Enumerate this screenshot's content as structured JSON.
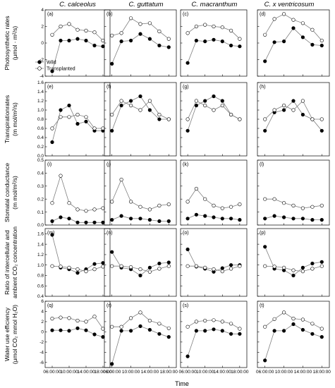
{
  "figure": {
    "columns": [
      "C. calceolus",
      "C. guttatum",
      "C. macranthum",
      "C. x ventricosum"
    ],
    "x_axis_label": "Time",
    "x_tick_labels": [
      "06:00:00",
      "10:00:00",
      "14:00:00",
      "18:00:00"
    ],
    "legend": {
      "wild": "Wild",
      "transplanted": "Transplanted"
    },
    "colors": {
      "wild": "#000000",
      "transplanted": "#ffffff",
      "line": "#808080"
    }
  },
  "chart_data": [
    {
      "type": "line",
      "row_label": [
        "Photosynthetic rates",
        "(μmol · m²/s)"
      ],
      "ylim": [
        -4,
        4
      ],
      "yticks": [
        "4",
        "2",
        "0",
        "-2",
        "-4"
      ],
      "x": [
        "06:00",
        "08:00",
        "10:00",
        "12:00",
        "14:00",
        "16:00",
        "18:00"
      ],
      "panels": [
        {
          "tag": "(a)",
          "series": [
            {
              "name": "Wild",
              "values": [
                -3.4,
                0.3,
                0.3,
                0.5,
                0.3,
                -0.3,
                -0.4
              ]
            },
            {
              "name": "Transplanted",
              "values": [
                1.0,
                2.0,
                2.3,
                1.6,
                1.5,
                1.3,
                0.3
              ]
            }
          ]
        },
        {
          "tag": "(b)",
          "series": [
            {
              "name": "Wild",
              "values": [
                -2.5,
                0.2,
                0.3,
                1.1,
                0.5,
                -0.3,
                -0.5
              ]
            },
            {
              "name": "Transplanted",
              "values": [
                0.9,
                1.2,
                3.0,
                2.3,
                2.4,
                1.4,
                0.5
              ]
            }
          ]
        },
        {
          "tag": "(c)",
          "series": [
            {
              "name": "Wild",
              "values": [
                -2.4,
                0.3,
                0.2,
                0.4,
                0.2,
                -0.3,
                -0.4
              ]
            },
            {
              "name": "Transplanted",
              "values": [
                1.2,
                2.0,
                2.2,
                2.0,
                1.9,
                1.5,
                0.5
              ]
            }
          ]
        },
        {
          "tag": "(d)",
          "series": [
            {
              "name": "Wild",
              "values": [
                -2.2,
                0.1,
                0.2,
                1.8,
                0.7,
                -0.2,
                -0.3
              ]
            },
            {
              "name": "Transplanted",
              "values": [
                1.0,
                2.9,
                3.5,
                2.8,
                2.4,
                1.6,
                0.3
              ]
            }
          ]
        }
      ]
    },
    {
      "type": "line",
      "row_label": [
        "Transpirationrates",
        "(m mol/m²/s)"
      ],
      "ylim": [
        0,
        1.6
      ],
      "yticks": [
        "1.6",
        "1.4",
        "1.2",
        "1.0",
        "0.8",
        "0.6",
        "0.4",
        "0.2",
        "0.0"
      ],
      "x": [
        "06:00",
        "08:00",
        "10:00",
        "12:00",
        "14:00",
        "16:00",
        "18:00"
      ],
      "panels": [
        {
          "tag": "(e)",
          "series": [
            {
              "name": "Wild",
              "values": [
                0.3,
                1.0,
                1.1,
                0.7,
                0.75,
                0.55,
                0.55
              ]
            },
            {
              "name": "Transplanted",
              "values": [
                0.6,
                0.85,
                0.85,
                0.9,
                0.85,
                0.6,
                0.6
              ]
            }
          ]
        },
        {
          "tag": "(f)",
          "series": [
            {
              "name": "Wild",
              "values": [
                0.55,
                1.1,
                1.2,
                1.3,
                1.0,
                0.8,
                0.8
              ]
            },
            {
              "name": "Transplanted",
              "values": [
                0.9,
                1.2,
                1.1,
                1.0,
                1.2,
                0.9,
                0.8
              ]
            }
          ]
        },
        {
          "tag": "(g)",
          "series": [
            {
              "name": "Wild",
              "values": [
                0.55,
                1.1,
                1.2,
                1.3,
                1.2,
                0.9,
                0.8
              ]
            },
            {
              "name": "Transplanted",
              "values": [
                0.8,
                1.2,
                1.1,
                1.0,
                1.1,
                0.9,
                0.8
              ]
            }
          ]
        },
        {
          "tag": "(h)",
          "series": [
            {
              "name": "Wild",
              "values": [
                0.55,
                0.95,
                1.0,
                1.2,
                0.9,
                0.8,
                0.55
              ]
            },
            {
              "name": "Transplanted",
              "values": [
                0.8,
                1.0,
                1.1,
                1.0,
                1.2,
                0.8,
                0.8
              ]
            }
          ]
        }
      ]
    },
    {
      "type": "line",
      "row_label": [
        "Stomatal conductance",
        "(m mol/m²/s)"
      ],
      "ylim": [
        0,
        0.5
      ],
      "yticks": [
        "0.5",
        "0.4",
        "0.3",
        "0.2",
        "0.1",
        "0.0"
      ],
      "x": [
        "06:00",
        "08:00",
        "10:00",
        "12:00",
        "14:00",
        "16:00",
        "18:00"
      ],
      "panels": [
        {
          "tag": "(i)",
          "series": [
            {
              "name": "Wild",
              "values": [
                0.03,
                0.06,
                0.05,
                0.02,
                0.02,
                0.02,
                0.02
              ]
            },
            {
              "name": "Transplanted",
              "values": [
                0.17,
                0.38,
                0.17,
                0.12,
                0.11,
                0.12,
                0.13
              ]
            }
          ]
        },
        {
          "tag": "(j)",
          "series": [
            {
              "name": "Wild",
              "values": [
                0.04,
                0.07,
                0.05,
                0.05,
                0.04,
                0.03,
                0.03
              ]
            },
            {
              "name": "Transplanted",
              "values": [
                0.18,
                0.35,
                0.18,
                0.14,
                0.12,
                0.15,
                0.16
              ]
            }
          ]
        },
        {
          "tag": "(k)",
          "series": [
            {
              "name": "Wild",
              "values": [
                0.05,
                0.08,
                0.07,
                0.06,
                0.05,
                0.05,
                0.04
              ]
            },
            {
              "name": "Transplanted",
              "values": [
                0.18,
                0.28,
                0.2,
                0.15,
                0.13,
                0.14,
                0.16
              ]
            }
          ]
        },
        {
          "tag": "(l)",
          "series": [
            {
              "name": "Wild",
              "values": [
                0.05,
                0.07,
                0.06,
                0.05,
                0.05,
                0.04,
                0.04
              ]
            },
            {
              "name": "Transplanted",
              "values": [
                0.2,
                0.2,
                0.17,
                0.15,
                0.13,
                0.14,
                0.15
              ]
            }
          ]
        }
      ]
    },
    {
      "type": "line",
      "row_label": [
        "Ratio of intercellular and",
        "ambient CO₂ concentration"
      ],
      "ylim": [
        0.4,
        1.7
      ],
      "yticks": [
        "1.6",
        "1.4",
        "1.2",
        "1.0",
        "0.8",
        "0.6",
        "0.4"
      ],
      "x": [
        "06:00",
        "08:00",
        "10:00",
        "12:00",
        "14:00",
        "16:00",
        "18:00"
      ],
      "panels": [
        {
          "tag": "(m)",
          "series": [
            {
              "name": "Wild",
              "values": [
                1.58,
                0.95,
                0.92,
                0.85,
                0.92,
                1.02,
                1.04
              ]
            },
            {
              "name": "Transplanted",
              "values": [
                0.98,
                0.97,
                0.95,
                0.92,
                0.88,
                0.92,
                0.97
              ]
            }
          ]
        },
        {
          "tag": "(n)",
          "series": [
            {
              "name": "Wild",
              "values": [
                1.25,
                0.95,
                0.92,
                0.8,
                0.95,
                1.03,
                1.05
              ]
            },
            {
              "name": "Transplanted",
              "values": [
                0.98,
                0.98,
                0.96,
                0.92,
                0.87,
                0.93,
                0.98
              ]
            }
          ]
        },
        {
          "tag": "(o)",
          "series": [
            {
              "name": "Wild",
              "values": [
                1.3,
                0.97,
                0.93,
                0.87,
                0.94,
                1.0,
                1.0
              ]
            },
            {
              "name": "Transplanted",
              "values": [
                0.98,
                0.98,
                0.95,
                0.92,
                0.88,
                0.93,
                0.98
              ]
            }
          ]
        },
        {
          "tag": "(p)",
          "series": [
            {
              "name": "Wild",
              "values": [
                1.35,
                0.93,
                0.9,
                0.8,
                0.95,
                1.03,
                1.06
              ]
            },
            {
              "name": "Transplanted",
              "values": [
                0.98,
                0.97,
                0.95,
                0.9,
                0.88,
                0.93,
                0.98
              ]
            }
          ]
        }
      ]
    },
    {
      "type": "line",
      "row_label": [
        "Water use efficiency",
        "(μmol CO₂ mmol H₂O)"
      ],
      "ylim": [
        -7,
        6
      ],
      "yticks": [
        "6",
        "4",
        "2",
        "0",
        "-2",
        "-4",
        "-6"
      ],
      "x": [
        "06:00",
        "08:00",
        "10:00",
        "12:00",
        "14:00",
        "16:00",
        "18:00"
      ],
      "panels": [
        {
          "tag": "(q)",
          "series": [
            {
              "name": "Wild",
              "values": [
                0.3,
                0.3,
                0.2,
                0.7,
                0.3,
                -0.5,
                -1.0
              ]
            },
            {
              "name": "Transplanted",
              "values": [
                2.6,
                2.8,
                2.7,
                2.2,
                2.0,
                3.0,
                0.6
              ]
            }
          ]
        },
        {
          "tag": "(r)",
          "series": [
            {
              "name": "Wild",
              "values": [
                -6.3,
                0.2,
                0.2,
                1.1,
                0.4,
                -0.4,
                -1.0
              ]
            },
            {
              "name": "Transplanted",
              "values": [
                1.0,
                1.0,
                2.7,
                3.8,
                2.2,
                1.6,
                0.7
              ]
            }
          ]
        },
        {
          "tag": "(s)",
          "series": [
            {
              "name": "Wild",
              "values": [
                -4.8,
                0.2,
                0.2,
                0.5,
                0.2,
                -0.4,
                -0.4
              ]
            },
            {
              "name": "Transplanted",
              "values": [
                1.0,
                2.0,
                2.2,
                2.3,
                2.0,
                1.6,
                0.6
              ]
            }
          ]
        },
        {
          "tag": "(t)",
          "series": [
            {
              "name": "Wild",
              "values": [
                -5.6,
                0.2,
                0.2,
                1.5,
                0.4,
                -0.4,
                -1.0
              ]
            },
            {
              "name": "Transplanted",
              "values": [
                1.0,
                2.5,
                3.8,
                2.6,
                2.4,
                1.6,
                0.6
              ]
            }
          ]
        }
      ]
    }
  ]
}
